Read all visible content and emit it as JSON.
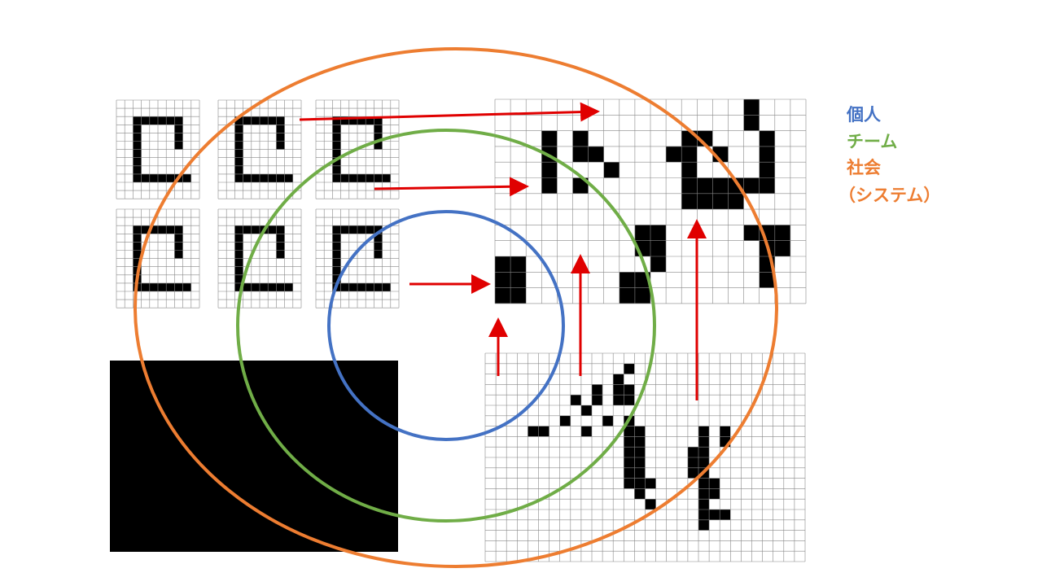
{
  "legend": [
    {
      "label": "個人"
    },
    {
      "label": "チーム"
    },
    {
      "label": "社会"
    },
    {
      "label": "（システム）"
    }
  ]
}
